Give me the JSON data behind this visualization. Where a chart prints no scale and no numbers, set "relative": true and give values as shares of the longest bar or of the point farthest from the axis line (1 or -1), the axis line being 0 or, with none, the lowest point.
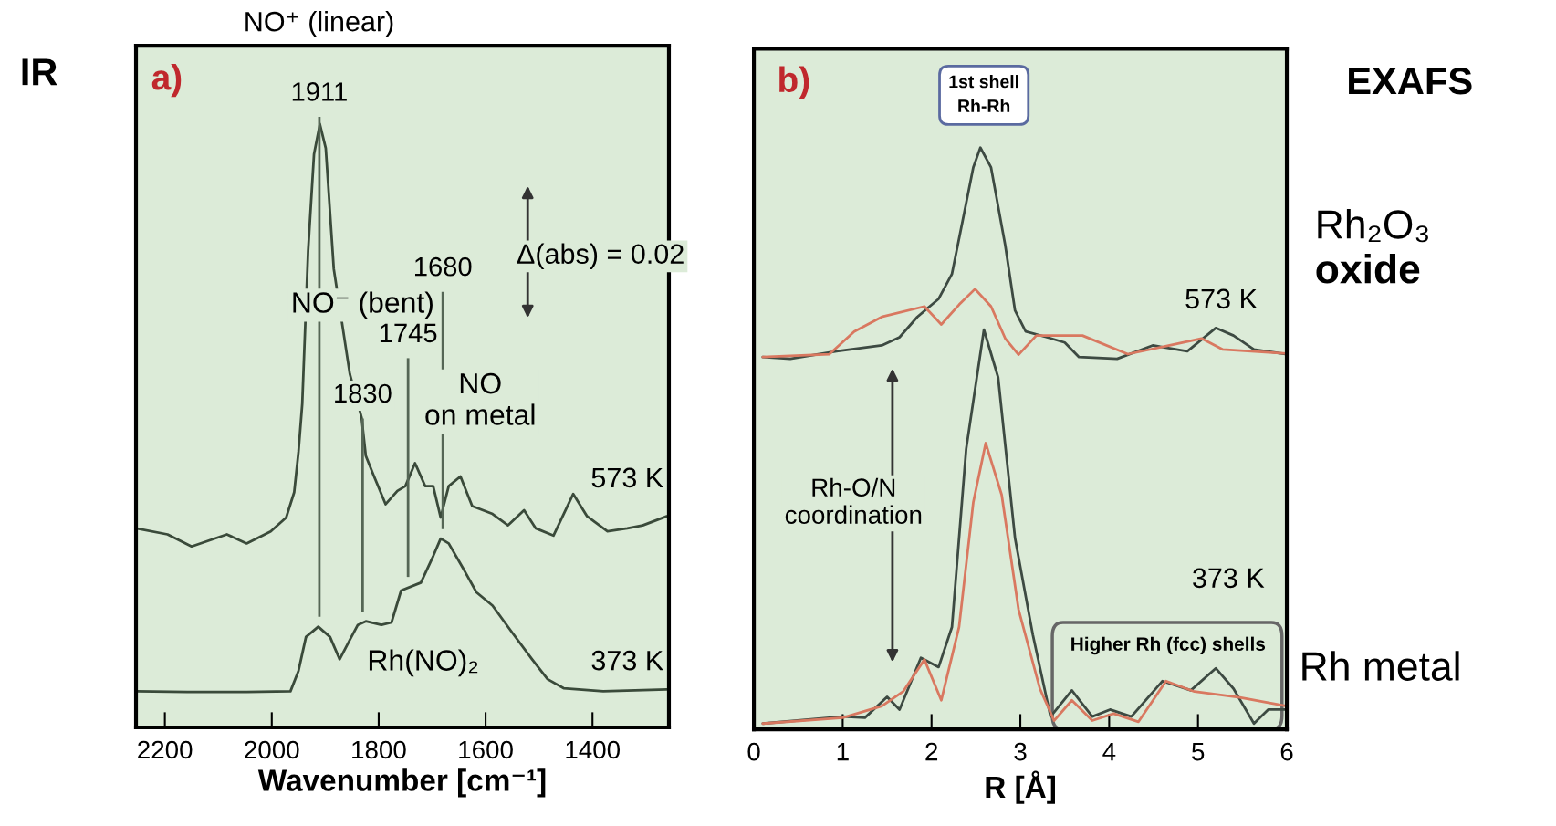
{
  "chart_data": [
    {
      "type": "line",
      "relative": true,
      "xlabel": "Wavenumber [cm⁻¹]",
      "xlim": [
        2254,
        1257
      ],
      "xticks": [
        2200,
        2000,
        1800,
        1600,
        1400
      ],
      "tick_labels": "x",
      "series": [
        {
          "color": "#3a4a3a",
          "x": [
            2254,
            2195,
            2150,
            2084,
            2047,
            2002,
            1973,
            1958,
            1950,
            1943,
            1932,
            1921,
            1910,
            1899,
            1884,
            1854,
            1832,
            1824,
            1810,
            1787,
            1765,
            1750,
            1732,
            1713,
            1698,
            1684,
            1669,
            1647,
            1625,
            1587,
            1558,
            1528,
            1506,
            1473,
            1436,
            1410,
            1372,
            1335,
            1306,
            1261
          ],
          "values": [
            0.33,
            0.32,
            0.3,
            0.32,
            0.305,
            0.325,
            0.348,
            0.39,
            0.457,
            0.536,
            0.79,
            0.95,
            1.0,
            0.96,
            0.76,
            0.586,
            0.514,
            0.45,
            0.419,
            0.37,
            0.392,
            0.4,
            0.438,
            0.4,
            0.4,
            0.348,
            0.4,
            0.416,
            0.367,
            0.354,
            0.335,
            0.36,
            0.33,
            0.318,
            0.387,
            0.35,
            0.325,
            0.33,
            0.335,
            0.35
          ]
        },
        {
          "color": "#3a4a3a",
          "x": [
            2254,
            2158,
            2047,
            1965,
            1950,
            1936,
            1913,
            1891,
            1873,
            1854,
            1839,
            1824,
            1795,
            1776,
            1758,
            1721,
            1698,
            1684,
            1669,
            1639,
            1617,
            1587,
            1550,
            1513,
            1484,
            1454,
            1380,
            1261
          ],
          "values": [
            0.06,
            0.059,
            0.059,
            0.06,
            0.094,
            0.15,
            0.167,
            0.15,
            0.113,
            0.145,
            0.17,
            0.176,
            0.17,
            0.174,
            0.227,
            0.24,
            0.284,
            0.313,
            0.305,
            0.259,
            0.224,
            0.202,
            0.157,
            0.113,
            0.08,
            0.065,
            0.06,
            0.063
          ]
        }
      ],
      "ref_lines": [
        {
          "axis": "x",
          "value": 1911,
          "color": "#556655"
        },
        {
          "axis": "x",
          "value": 1830,
          "color": "#556655"
        },
        {
          "axis": "x",
          "value": 1745,
          "color": "#556655"
        },
        {
          "axis": "x",
          "value": 1680,
          "color": "#556655"
        }
      ],
      "annotations": [
        "a)",
        "IR",
        "NO⁺ (linear)",
        "Δ(abs) = 0.02",
        "1911",
        "1830",
        "1745",
        "1680",
        "NO⁻ (bent)",
        "NO\non metal",
        "Rh(NO)₂",
        "573 K",
        "373 K"
      ]
    },
    {
      "type": "line",
      "relative": true,
      "xlabel": "R [Å]",
      "xlim": [
        0,
        6
      ],
      "xticks": [
        0,
        1,
        2,
        3,
        4,
        5,
        6
      ],
      "tick_labels": "x",
      "series": [
        {
          "color": "#3d4a42",
          "x": [
            0.1,
            0.41,
            0.93,
            1.44,
            1.64,
            1.84,
            2.08,
            2.23,
            2.35,
            2.47,
            2.55,
            2.67,
            2.83,
            2.94,
            3.06,
            3.3,
            3.5,
            3.66,
            4.09,
            4.49,
            4.88,
            5.2,
            5.4,
            5.63,
            6.0
          ],
          "values": [
            0.64,
            0.637,
            0.65,
            0.66,
            0.674,
            0.709,
            0.74,
            0.783,
            0.874,
            0.966,
            1.0,
            0.966,
            0.832,
            0.72,
            0.684,
            0.674,
            0.665,
            0.64,
            0.637,
            0.66,
            0.65,
            0.69,
            0.677,
            0.653,
            0.645
          ]
        },
        {
          "color": "#d97860",
          "x": [
            0.1,
            0.85,
            1.13,
            1.44,
            1.92,
            2.11,
            2.31,
            2.49,
            2.67,
            2.83,
            2.98,
            3.18,
            3.7,
            4.21,
            4.68,
            5.04,
            5.28,
            6.0
          ],
          "values": [
            0.64,
            0.645,
            0.684,
            0.709,
            0.727,
            0.696,
            0.73,
            0.757,
            0.727,
            0.672,
            0.644,
            0.677,
            0.677,
            0.645,
            0.66,
            0.672,
            0.653,
            0.646
          ]
        },
        {
          "color": "#3d4a42",
          "x": [
            0.1,
            1.0,
            1.25,
            1.5,
            1.64,
            1.88,
            2.08,
            2.23,
            2.39,
            2.59,
            2.75,
            2.94,
            3.14,
            3.34,
            3.58,
            3.81,
            4.01,
            4.25,
            4.6,
            4.92,
            5.2,
            5.4,
            5.63,
            5.79,
            6.0
          ],
          "values": [
            0.01,
            0.022,
            0.02,
            0.056,
            0.034,
            0.123,
            0.107,
            0.176,
            0.482,
            0.687,
            0.605,
            0.329,
            0.163,
            0.022,
            0.067,
            0.022,
            0.034,
            0.022,
            0.083,
            0.067,
            0.105,
            0.07,
            0.01,
            0.034,
            0.034
          ]
        },
        {
          "color": "#d97860",
          "x": [
            0.1,
            1.0,
            1.44,
            1.68,
            1.92,
            2.11,
            2.31,
            2.47,
            2.61,
            2.79,
            2.98,
            3.22,
            3.38,
            3.58,
            3.81,
            4.05,
            4.33,
            4.64,
            4.96,
            5.47,
            6.0
          ],
          "values": [
            0.01,
            0.02,
            0.04,
            0.065,
            0.12,
            0.05,
            0.176,
            0.39,
            0.492,
            0.403,
            0.206,
            0.07,
            0.015,
            0.05,
            0.015,
            0.027,
            0.013,
            0.083,
            0.065,
            0.055,
            0.04
          ]
        }
      ],
      "annotations": [
        "b)",
        "EXAFS",
        "Rh₂O₃",
        "oxide",
        "Rh metal",
        "Rh-O/N\ncoordination",
        "Higher Rh (fcc) shells",
        "1st shell\nRh-Rh",
        "573 K",
        "373 K"
      ]
    }
  ]
}
